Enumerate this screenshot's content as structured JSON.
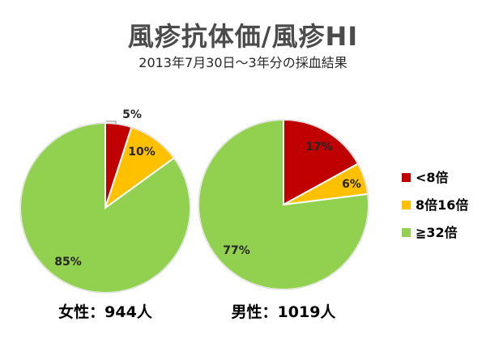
{
  "title": "風疹抗体価/風疹HI",
  "subtitle": "2013年7月30日〜3年分の採血結果",
  "colors": {
    "lt8": "#c00000",
    "mid": "#ffc000",
    "ge32": "#92d050"
  },
  "chart_data": [
    {
      "type": "pie",
      "name": "女性：944人",
      "categories": [
        "<8倍",
        "8倍16倍",
        "≧32倍"
      ],
      "values": [
        5,
        10,
        85
      ],
      "labels": [
        "5%",
        "10%",
        "85%"
      ]
    },
    {
      "type": "pie",
      "name": "男性：1019人",
      "categories": [
        "<8倍",
        "8倍16倍",
        "≧32倍"
      ],
      "values": [
        17,
        6,
        77
      ],
      "labels": [
        "17%",
        "6%",
        "77%"
      ]
    }
  ],
  "legend": {
    "placement": "right",
    "items": [
      "<8倍",
      "8倍16倍",
      "≧32倍"
    ]
  }
}
